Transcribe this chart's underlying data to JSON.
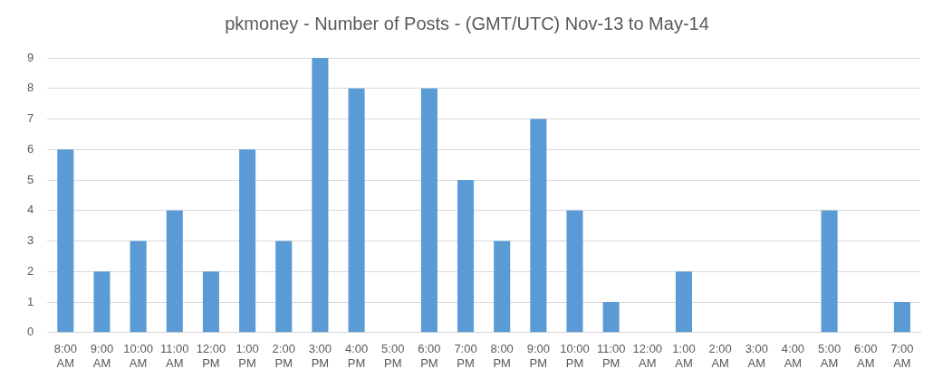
{
  "chart_data": {
    "type": "bar",
    "title": "pkmoney - Number of Posts - (GMT/UTC) Nov-13 to May-14",
    "categories": [
      "8:00 AM",
      "9:00 AM",
      "10:00 AM",
      "11:00 AM",
      "12:00 PM",
      "1:00 PM",
      "2:00 PM",
      "3:00 PM",
      "4:00 PM",
      "5:00 PM",
      "6:00 PM",
      "7:00 PM",
      "8:00 PM",
      "9:00 PM",
      "10:00 PM",
      "11:00 PM",
      "12:00 AM",
      "1:00 AM",
      "2:00 AM",
      "3:00 AM",
      "4:00 AM",
      "5:00 AM",
      "6:00 AM",
      "7:00 AM"
    ],
    "values": [
      6,
      2,
      3,
      4,
      2,
      6,
      3,
      9,
      8,
      0,
      8,
      5,
      3,
      7,
      4,
      1,
      0,
      2,
      0,
      0,
      0,
      4,
      0,
      1
    ],
    "color": "#5b9bd5",
    "ylim": [
      0,
      9
    ],
    "yticks": [
      0,
      1,
      2,
      3,
      4,
      5,
      6,
      7,
      8,
      9
    ],
    "grid": "y"
  }
}
